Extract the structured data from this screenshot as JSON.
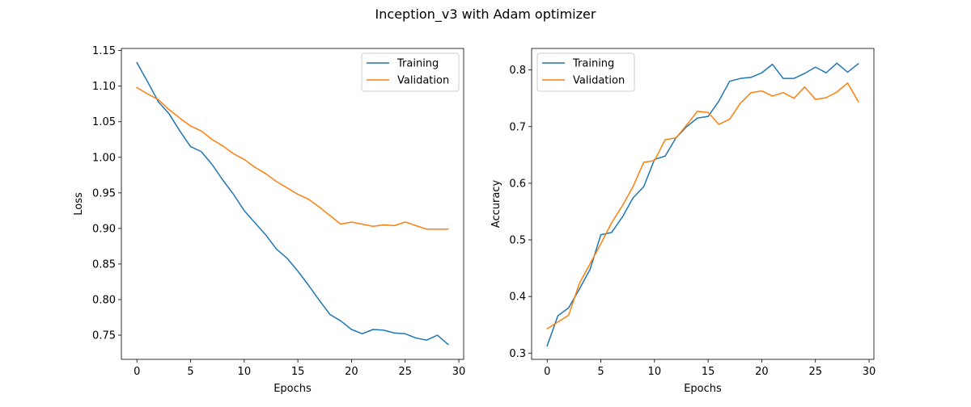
{
  "figure": {
    "suptitle": "Inception_v3 with Adam optimizer"
  },
  "colors": {
    "training": "#1f77b4",
    "validation": "#ff7f0e",
    "axes": "#000000",
    "legend_border": "#cccccc"
  },
  "chart_data": [
    {
      "type": "line",
      "xlabel": "Epochs",
      "ylabel": "Loss",
      "xlim": [
        -1.45,
        30.45
      ],
      "ylim": [
        0.716,
        1.153
      ],
      "xticks": [
        0,
        5,
        10,
        15,
        20,
        25,
        30
      ],
      "yticks": [
        0.75,
        0.8,
        0.85,
        0.9,
        0.95,
        1.0,
        1.05,
        1.1,
        1.15
      ],
      "ytick_labels": [
        "0.75",
        "0.80",
        "0.85",
        "0.90",
        "0.95",
        "1.00",
        "1.05",
        "1.10",
        "1.15"
      ],
      "grid": false,
      "legend": "upper right",
      "x": [
        0,
        1,
        2,
        3,
        4,
        5,
        6,
        7,
        8,
        9,
        10,
        11,
        12,
        13,
        14,
        15,
        16,
        17,
        18,
        19,
        20,
        21,
        22,
        23,
        24,
        25,
        26,
        27,
        28,
        29
      ],
      "series": [
        {
          "name": "Training",
          "color_key": "training",
          "values": [
            1.133,
            1.106,
            1.078,
            1.061,
            1.037,
            1.015,
            1.008,
            0.99,
            0.968,
            0.948,
            0.925,
            0.908,
            0.891,
            0.871,
            0.858,
            0.84,
            0.82,
            0.799,
            0.779,
            0.77,
            0.758,
            0.752,
            0.758,
            0.757,
            0.753,
            0.752,
            0.746,
            0.743,
            0.75,
            0.737
          ]
        },
        {
          "name": "Validation",
          "color_key": "validation",
          "values": [
            1.098,
            1.089,
            1.081,
            1.067,
            1.055,
            1.044,
            1.037,
            1.025,
            1.016,
            1.005,
            0.997,
            0.986,
            0.977,
            0.966,
            0.957,
            0.948,
            0.941,
            0.93,
            0.918,
            0.906,
            0.909,
            0.906,
            0.903,
            0.905,
            0.904,
            0.909,
            0.904,
            0.899,
            0.899,
            0.899
          ]
        }
      ]
    },
    {
      "type": "line",
      "xlabel": "Epochs",
      "ylabel": "Accuracy",
      "xlim": [
        -1.45,
        30.45
      ],
      "ylim": [
        0.289,
        0.838
      ],
      "xticks": [
        0,
        5,
        10,
        15,
        20,
        25,
        30
      ],
      "yticks": [
        0.3,
        0.4,
        0.5,
        0.6,
        0.7,
        0.8
      ],
      "ytick_labels": [
        "0.3",
        "0.4",
        "0.5",
        "0.6",
        "0.7",
        "0.8"
      ],
      "grid": false,
      "legend": "upper left",
      "x": [
        0,
        1,
        2,
        3,
        4,
        5,
        6,
        7,
        8,
        9,
        10,
        11,
        12,
        13,
        14,
        15,
        16,
        17,
        18,
        19,
        20,
        21,
        22,
        23,
        24,
        25,
        26,
        27,
        28,
        29
      ],
      "series": [
        {
          "name": "Training",
          "color_key": "training",
          "values": [
            0.313,
            0.366,
            0.38,
            0.413,
            0.448,
            0.509,
            0.513,
            0.54,
            0.574,
            0.594,
            0.642,
            0.648,
            0.68,
            0.7,
            0.715,
            0.718,
            0.745,
            0.78,
            0.785,
            0.787,
            0.795,
            0.81,
            0.785,
            0.785,
            0.794,
            0.805,
            0.795,
            0.812,
            0.796,
            0.811
          ]
        },
        {
          "name": "Validation",
          "color_key": "validation",
          "values": [
            0.343,
            0.355,
            0.367,
            0.423,
            0.458,
            0.493,
            0.53,
            0.56,
            0.594,
            0.637,
            0.64,
            0.677,
            0.68,
            0.703,
            0.727,
            0.725,
            0.704,
            0.713,
            0.741,
            0.76,
            0.763,
            0.754,
            0.76,
            0.75,
            0.77,
            0.748,
            0.751,
            0.761,
            0.777,
            0.744
          ]
        }
      ]
    }
  ]
}
